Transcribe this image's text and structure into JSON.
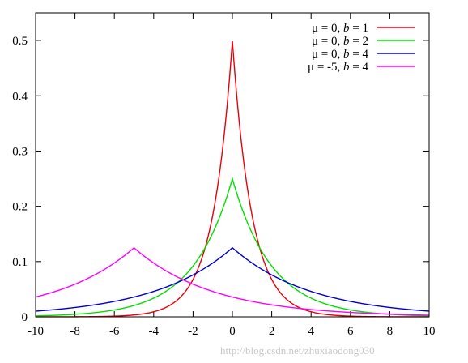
{
  "chart_data": {
    "type": "line",
    "title": "",
    "xlabel": "",
    "ylabel": "",
    "xlim": [
      -10,
      10
    ],
    "ylim": [
      0,
      0.55
    ],
    "x_ticks": [
      "-10",
      "-8",
      "-6",
      "-4",
      "-2",
      "0",
      "2",
      "4",
      "6",
      "8",
      "10"
    ],
    "y_ticks": [
      "0",
      "0.1",
      "0.2",
      "0.3",
      "0.4",
      "0.5"
    ],
    "x_tick_values": [
      -10,
      -8,
      -6,
      -4,
      -2,
      0,
      2,
      4,
      6,
      8,
      10
    ],
    "y_tick_values": [
      0,
      0.1,
      0.2,
      0.3,
      0.4,
      0.5
    ],
    "grid": false,
    "legend_position": "top-right",
    "series": [
      {
        "name": "μ = 0, b = 1",
        "name_prefix": "μ = 0, ",
        "name_var": "b",
        "name_suffix": " = 1",
        "mu": 0,
        "b": 1,
        "color": "#e8000b",
        "peak": 0.5
      },
      {
        "name": "μ = 0, b = 2",
        "name_prefix": "μ = 0, ",
        "name_var": "b",
        "name_suffix": " = 2",
        "mu": 0,
        "b": 2,
        "color": "#00e000",
        "peak": 0.25
      },
      {
        "name": "μ = 0, b = 4",
        "name_prefix": "μ = 0, ",
        "name_var": "b",
        "name_suffix": " = 4",
        "mu": 0,
        "b": 4,
        "color": "#0000d0",
        "peak": 0.125
      },
      {
        "name": "μ = -5, b = 4",
        "name_prefix": "μ = -5, ",
        "name_var": "b",
        "name_suffix": " = 4",
        "mu": -5,
        "b": 4,
        "color": "#ff00ff",
        "peak": 0.125
      }
    ]
  },
  "watermark": "http://blog.csdn.net/zhuxiaodong030"
}
